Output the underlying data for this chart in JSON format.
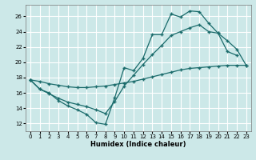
{
  "xlabel": "Humidex (Indice chaleur)",
  "bg_color": "#cce8e8",
  "grid_color": "#ffffff",
  "line_color": "#1a6b6b",
  "xlim": [
    -0.5,
    23.5
  ],
  "ylim": [
    11,
    27.5
  ],
  "yticks": [
    12,
    14,
    16,
    18,
    20,
    22,
    24,
    26
  ],
  "xticks": [
    0,
    1,
    2,
    3,
    4,
    5,
    6,
    7,
    8,
    9,
    10,
    11,
    12,
    13,
    14,
    15,
    16,
    17,
    18,
    19,
    20,
    21,
    22,
    23
  ],
  "line1_x": [
    0,
    1,
    2,
    3,
    4,
    5,
    6,
    7,
    8,
    9,
    10,
    11,
    12,
    13,
    14,
    15,
    16,
    17,
    18,
    19,
    20,
    21,
    22
  ],
  "line1_y": [
    17.7,
    16.5,
    16.0,
    15.0,
    14.3,
    13.8,
    13.2,
    12.1,
    11.9,
    15.4,
    19.3,
    18.9,
    20.5,
    23.6,
    23.6,
    26.3,
    25.9,
    26.7,
    26.6,
    25.1,
    23.8,
    21.4,
    20.9
  ],
  "line2_x": [
    0,
    1,
    2,
    3,
    4,
    5,
    6,
    7,
    8,
    9,
    10,
    11,
    12,
    13,
    14,
    15,
    16,
    17,
    18,
    19,
    20,
    21,
    22,
    23
  ],
  "line2_y": [
    17.7,
    17.5,
    17.2,
    17.0,
    16.8,
    16.7,
    16.7,
    16.8,
    16.9,
    17.1,
    17.3,
    17.5,
    17.8,
    18.1,
    18.4,
    18.7,
    19.0,
    19.2,
    19.3,
    19.4,
    19.5,
    19.6,
    19.6,
    19.6
  ],
  "line3_x": [
    0,
    1,
    2,
    3,
    4,
    5,
    6,
    7,
    8,
    9,
    10,
    11,
    12,
    13,
    14,
    15,
    16,
    17,
    18,
    19,
    20,
    21,
    22,
    23
  ],
  "line3_y": [
    17.7,
    16.5,
    15.9,
    15.3,
    14.8,
    14.5,
    14.2,
    13.8,
    13.3,
    14.9,
    16.9,
    18.3,
    19.7,
    21.0,
    22.2,
    23.5,
    24.0,
    24.5,
    24.9,
    24.0,
    23.8,
    22.8,
    21.7,
    19.6
  ]
}
